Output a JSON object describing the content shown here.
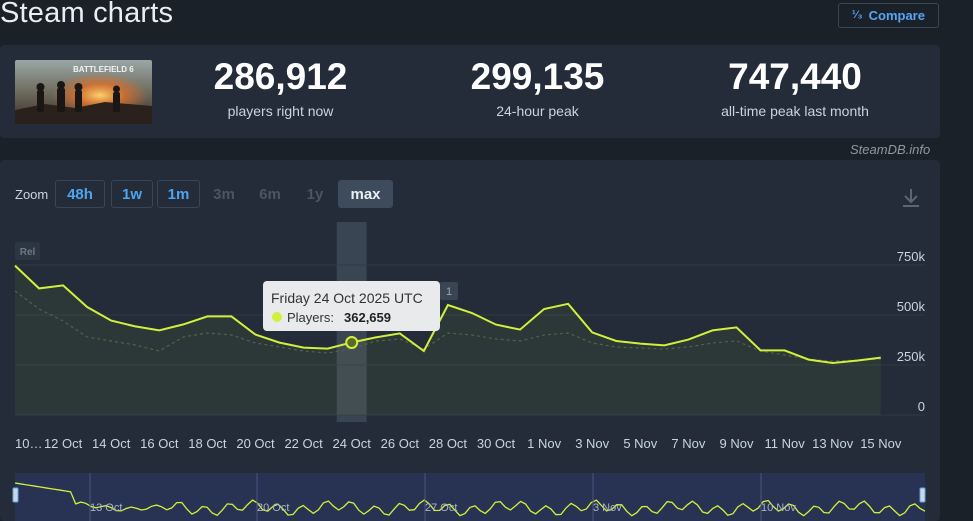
{
  "page": {
    "title": "Steam charts"
  },
  "compare": {
    "icon": "sort-numeric-icon",
    "label": "Compare"
  },
  "stats": [
    {
      "value": "286,912",
      "label": "players right now"
    },
    {
      "value": "299,135",
      "label": "24-hour peak"
    },
    {
      "value": "747,440",
      "label": "all-time peak last month"
    }
  ],
  "banner": {
    "text": "BATTLEFIELD 6"
  },
  "credit": "SteamDB.info",
  "zoom": {
    "label": "Zoom",
    "buttons": [
      {
        "label": "48h",
        "state": "enabled"
      },
      {
        "label": "1w",
        "state": "enabled"
      },
      {
        "label": "1m",
        "state": "enabled"
      },
      {
        "label": "3m",
        "state": "disabled"
      },
      {
        "label": "6m",
        "state": "disabled"
      },
      {
        "label": "1y",
        "state": "disabled"
      },
      {
        "label": "max",
        "state": "active"
      }
    ]
  },
  "tooltip": {
    "date": "Friday 24 Oct 2025 UTC",
    "series_label": "Players:",
    "value": "362,659"
  },
  "badges": {
    "rel": "Rel",
    "marker": "1"
  },
  "navigator": {
    "labels": [
      "13 Oct",
      "20 Oct",
      "27 Oct",
      "3 Nov",
      "10 Nov"
    ]
  },
  "colors": {
    "line": "#d2f03b",
    "accent": "#57a6f2",
    "panel": "#232c38"
  },
  "chart_data": {
    "type": "line",
    "title": "",
    "xlabel": "",
    "ylabel": "",
    "ylim": [
      0,
      750000
    ],
    "yticks": [
      0,
      250000,
      500000,
      750000
    ],
    "ytick_labels": [
      "0",
      "250k",
      "500k",
      "750k"
    ],
    "xtick_labels": [
      "10…",
      "12 Oct",
      "14 Oct",
      "16 Oct",
      "18 Oct",
      "20 Oct",
      "22 Oct",
      "24 Oct",
      "26 Oct",
      "28 Oct",
      "30 Oct",
      "1 Nov",
      "3 Nov",
      "5 Nov",
      "7 Nov",
      "9 Nov",
      "11 Nov",
      "13 Nov",
      "15 Nov"
    ],
    "grid": true,
    "legend": "none",
    "x": [
      "10 Oct",
      "11 Oct",
      "12 Oct",
      "13 Oct",
      "14 Oct",
      "15 Oct",
      "16 Oct",
      "17 Oct",
      "18 Oct",
      "19 Oct",
      "20 Oct",
      "21 Oct",
      "22 Oct",
      "23 Oct",
      "24 Oct",
      "25 Oct",
      "26 Oct",
      "27 Oct",
      "28 Oct",
      "29 Oct",
      "30 Oct",
      "31 Oct",
      "1 Nov",
      "2 Nov",
      "3 Nov",
      "4 Nov",
      "5 Nov",
      "6 Nov",
      "7 Nov",
      "8 Nov",
      "9 Nov",
      "10 Nov",
      "11 Nov",
      "12 Nov",
      "13 Nov",
      "14 Nov",
      "15 Nov"
    ],
    "series": [
      {
        "values": [
          747000,
          633000,
          648000,
          540000,
          472000,
          443000,
          423000,
          453000,
          493000,
          493000,
          402000,
          362000,
          337000,
          332000,
          362659,
          388000,
          408000,
          320000,
          550000,
          510000,
          452000,
          427000,
          530000,
          556000,
          413000,
          370000,
          357000,
          348000,
          377000,
          423000,
          438000,
          323000,
          323000,
          277000,
          260000,
          272000,
          287000
        ]
      }
    ],
    "secondary_series": [
      {
        "values": [
          620000,
          530000,
          470000,
          390000,
          370000,
          350000,
          320000,
          390000,
          410000,
          400000,
          360000,
          340000,
          320000,
          310000,
          330000,
          370000,
          380000,
          330000,
          410000,
          400000,
          380000,
          370000,
          400000,
          410000,
          360000,
          340000,
          335000,
          330000,
          340000,
          360000,
          370000,
          320000,
          300000,
          280000,
          270000,
          275000,
          280000
        ]
      }
    ],
    "highlight": {
      "x": "24 Oct",
      "y": 362659
    }
  }
}
